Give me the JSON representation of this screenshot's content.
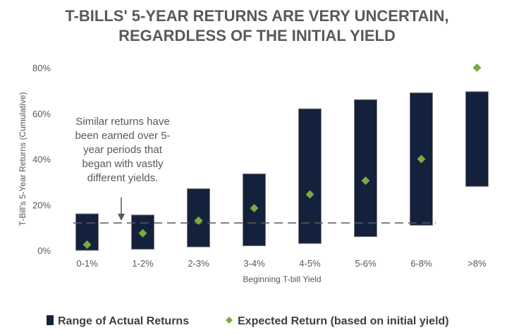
{
  "chart_data": {
    "type": "bar",
    "title": [
      "T-BILLS' 5-YEAR RETURNS ARE VERY UNCERTAIN,",
      "REGARDLESS OF THE INITIAL YIELD"
    ],
    "xlabel": "Beginning T-bill Yield",
    "ylabel": "T-Bill's 5-Year Returns (Cumulative)",
    "categories": [
      "0-1%",
      "1-2%",
      "2-3%",
      "3-4%",
      "4-5%",
      "5-6%",
      "6-8%",
      ">8%"
    ],
    "yticks": [
      "0%",
      "20%",
      "40%",
      "60%",
      "80%"
    ],
    "ylim": [
      0,
      0.8
    ],
    "series": [
      {
        "name": "Range of Actual Returns",
        "type": "floating-bar",
        "color": "#14213d",
        "low": [
          0.0,
          0.005,
          0.015,
          0.02,
          0.03,
          0.06,
          0.11,
          0.28
        ],
        "high": [
          0.16,
          0.155,
          0.27,
          0.335,
          0.62,
          0.66,
          0.69,
          0.695
        ]
      },
      {
        "name": "Expected Return (based on initial yield)",
        "type": "scatter",
        "marker": "diamond",
        "color": "#7aab3e",
        "values": [
          0.025,
          0.075,
          0.13,
          0.185,
          0.245,
          0.305,
          0.4,
          0.8
        ]
      }
    ],
    "reference_line": {
      "value": 0.12,
      "style": "dashed",
      "color": "#595959"
    },
    "annotation": {
      "lines": [
        "Similar returns have",
        "been earned over 5-",
        "year periods that",
        "began with vastly",
        "different yields."
      ]
    },
    "grid": false,
    "legend_position": "bottom"
  }
}
